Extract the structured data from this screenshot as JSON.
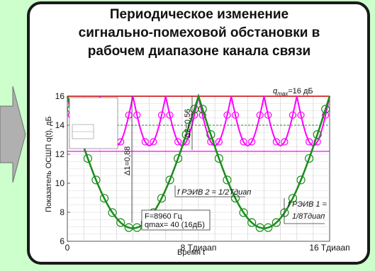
{
  "title": {
    "line1": "Периодическое изменение",
    "line2": "сигнально-помеховой обстановки в",
    "line3": "рабочем диапазоне канала связи"
  },
  "chart_data": {
    "type": "line",
    "xlabel": "Время t",
    "ylabel": "Показатель ОСШП q(t), дБ",
    "ylim": [
      6,
      16
    ],
    "yticks": [
      6,
      8,
      10,
      12,
      14,
      16
    ],
    "xticks": [
      "0",
      "8 Tдиаап",
      "16 Tдиаап"
    ],
    "xlim": [
      0,
      16
    ],
    "qmax_label": "qmax=16 дБ",
    "qmax": 16,
    "threshold_magenta": 12.2,
    "threshold_green": 14,
    "series": [
      {
        "name": "f РЭИВ 2 = 1/2Tдиап",
        "color": "#ff00ff",
        "period": 2,
        "min": 12.6,
        "max": 16,
        "width": 2
      },
      {
        "name": "f РЭИВ 1 = 1/8Tдиап",
        "color": "#1a8c1a",
        "period": 8,
        "min": 6.9,
        "max": 16,
        "width": 2.5
      }
    ],
    "annotations": {
      "delta1": "Δ1=0,88",
      "delta2": "Δ2=0,56",
      "params_line1": "F=8960 Гц",
      "params_line2": "qmax= 40 (16дБ)",
      "f2_label": "f РЭИВ 2 = 1/2Tдиап",
      "f1_label_a": "f РЭИВ 1 =",
      "f1_label_b": "1/8Tдиап"
    }
  },
  "colors": {
    "background": "#ccffcc",
    "arrow": "#b0b0b0",
    "qmax_line": "#cc0000",
    "magenta": "#ff00ff",
    "green": "#1a8c1a"
  }
}
